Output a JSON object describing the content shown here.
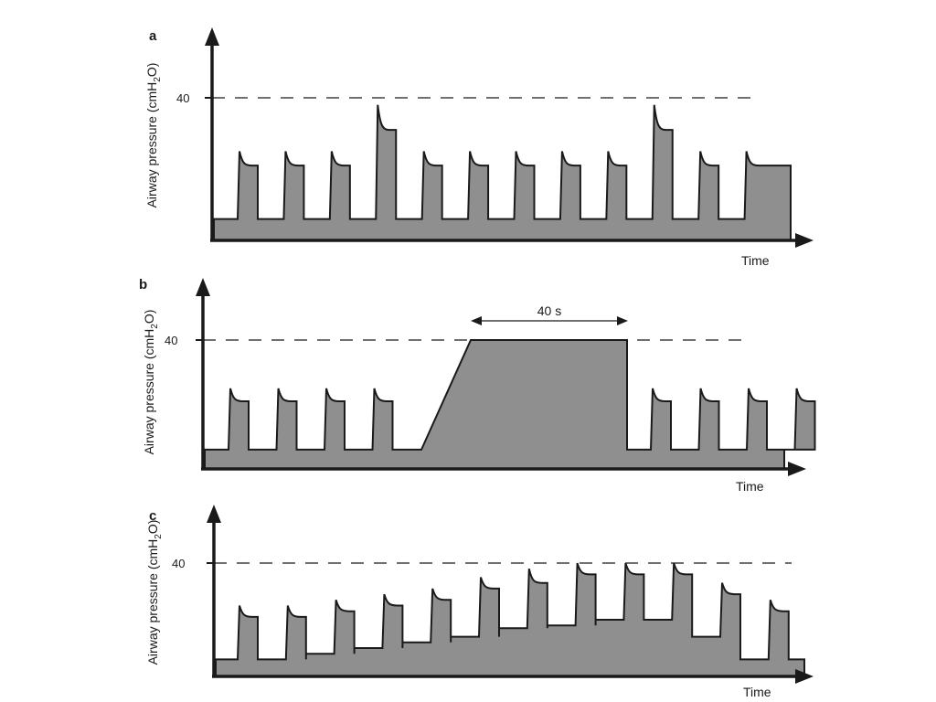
{
  "chart_data": [
    {
      "type": "area",
      "panel_label": "a",
      "ylabel": {
        "main": "Airway pressure (cmH",
        "sub": "2",
        "end": "O)"
      },
      "xlabel": "Time",
      "reference_line": {
        "value": 40,
        "label": "40",
        "style": "dashed"
      },
      "baseline": 6,
      "breaths": [
        {
          "peak": 25,
          "plateau": 21
        },
        {
          "peak": 25,
          "plateau": 21
        },
        {
          "peak": 25,
          "plateau": 21
        },
        {
          "peak": 38,
          "plateau": 31
        },
        {
          "peak": 25,
          "plateau": 21
        },
        {
          "peak": 25,
          "plateau": 21
        },
        {
          "peak": 25,
          "plateau": 21
        },
        {
          "peak": 25,
          "plateau": 21
        },
        {
          "peak": 25,
          "plateau": 21
        },
        {
          "peak": 38,
          "plateau": 31
        },
        {
          "peak": 25,
          "plateau": 21
        },
        {
          "peak": 25,
          "plateau": 21
        }
      ]
    },
    {
      "type": "area",
      "panel_label": "b",
      "ylabel": {
        "main": "Airway pressure (cmH",
        "sub": "2",
        "end": "O)"
      },
      "xlabel": "Time",
      "reference_line": {
        "value": 40,
        "label": "40",
        "style": "dashed"
      },
      "baseline": 6,
      "breaths_before": [
        {
          "peak": 25,
          "plateau": 21
        },
        {
          "peak": 25,
          "plateau": 21
        },
        {
          "peak": 25,
          "plateau": 21
        },
        {
          "peak": 25,
          "plateau": 21
        }
      ],
      "recruitment": {
        "level": 40,
        "duration_label": "40 s"
      },
      "breaths_after": [
        {
          "peak": 25,
          "plateau": 21
        },
        {
          "peak": 25,
          "plateau": 21
        },
        {
          "peak": 25,
          "plateau": 21
        },
        {
          "peak": 25,
          "plateau": 21
        }
      ]
    },
    {
      "type": "area",
      "panel_label": "c",
      "ylabel": {
        "main": "Airway pressure (cmH",
        "sub": "2",
        "end": "O)"
      },
      "xlabel": "Time",
      "reference_line": {
        "value": 40,
        "label": "40",
        "style": "dashed"
      },
      "breaths": [
        {
          "base": 6,
          "peak": 25,
          "plateau": 21
        },
        {
          "base": 6,
          "peak": 25,
          "plateau": 21
        },
        {
          "base": 8,
          "peak": 27,
          "plateau": 23
        },
        {
          "base": 10,
          "peak": 29,
          "plateau": 25
        },
        {
          "base": 12,
          "peak": 31,
          "plateau": 27
        },
        {
          "base": 14,
          "peak": 35,
          "plateau": 31
        },
        {
          "base": 17,
          "peak": 38,
          "plateau": 33
        },
        {
          "base": 18,
          "peak": 40,
          "plateau": 36
        },
        {
          "base": 20,
          "peak": 40,
          "plateau": 36
        },
        {
          "base": 20,
          "peak": 40,
          "plateau": 36
        },
        {
          "base": 14,
          "peak": 33,
          "plateau": 29
        },
        {
          "base": 6,
          "peak": 27,
          "plateau": 23
        }
      ],
      "final_base": 6
    }
  ]
}
